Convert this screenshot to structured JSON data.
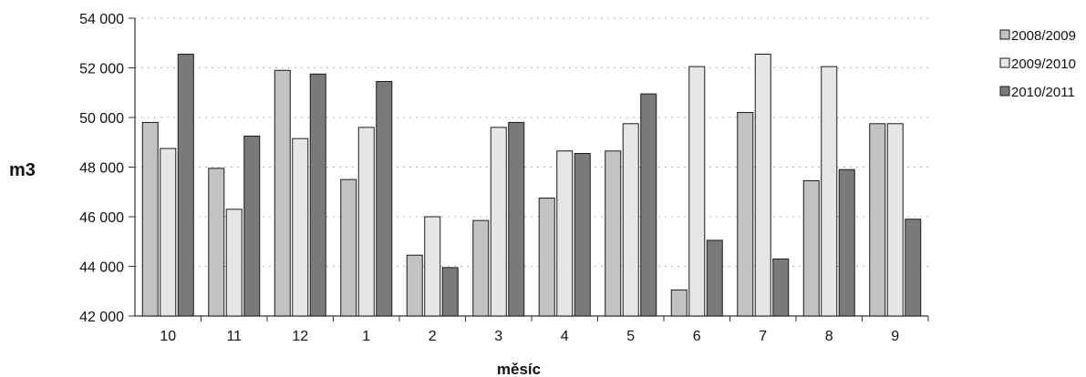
{
  "chart_data": {
    "type": "bar",
    "title": "",
    "xlabel": "měsíc",
    "ylabel": "m3",
    "categories": [
      "10",
      "11",
      "12",
      "1",
      "2",
      "3",
      "4",
      "5",
      "6",
      "7",
      "8",
      "9"
    ],
    "series": [
      {
        "name": "2008/2009",
        "color": "#c2c2c2",
        "values": [
          49800,
          47950,
          51900,
          47500,
          44450,
          45850,
          46750,
          48650,
          43050,
          50200,
          47450,
          49750
        ]
      },
      {
        "name": "2009/2010",
        "color": "#e6e6e6",
        "values": [
          48750,
          46300,
          49150,
          49600,
          46000,
          49600,
          48650,
          49750,
          52050,
          52550,
          52050,
          49750
        ]
      },
      {
        "name": "2010/2011",
        "color": "#7a7a7a",
        "values": [
          52550,
          49250,
          51750,
          51450,
          43950,
          49800,
          48550,
          50950,
          45050,
          44300,
          47900,
          45900
        ]
      }
    ],
    "ylim": [
      42000,
      54000
    ],
    "yticks": [
      42000,
      44000,
      46000,
      48000,
      50000,
      52000,
      54000
    ],
    "ytick_labels": [
      "42 000",
      "44 000",
      "46 000",
      "48 000",
      "50 000",
      "52 000",
      "54 000"
    ],
    "grid": true,
    "legend_position": "right"
  }
}
